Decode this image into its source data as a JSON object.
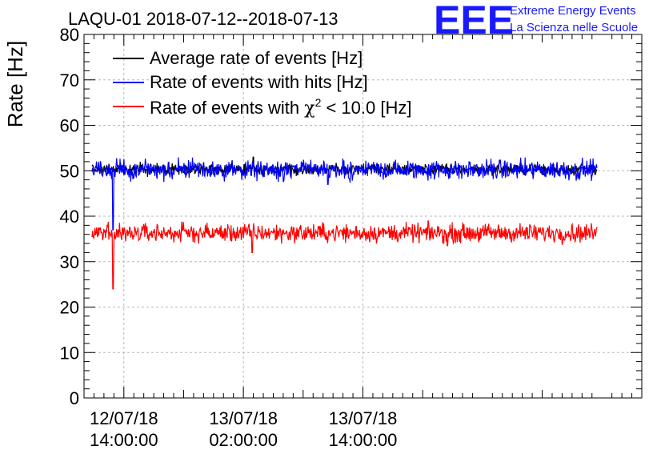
{
  "chart_data": {
    "type": "line",
    "title": "LAQU-01 2018-07-12--2018-07-13",
    "ylabel": "Rate [Hz]",
    "xlabel": "",
    "ylim": [
      0,
      80
    ],
    "y_ticks": [
      0,
      10,
      20,
      30,
      40,
      50,
      60,
      70,
      80
    ],
    "x_range_hours": [
      -4,
      52
    ],
    "x_ticks": [
      {
        "hours": 0,
        "date": "12/07/18",
        "time": "14:00:00"
      },
      {
        "hours": 12,
        "date": "13/07/18",
        "time": "02:00:00"
      },
      {
        "hours": 24,
        "date": "13/07/18",
        "time": "14:00:00"
      }
    ],
    "grid": true,
    "legend_position": "top-left",
    "series": [
      {
        "name": "Average rate of events [Hz]",
        "color": "#000000",
        "start_hours": -3.2,
        "end_hours": 47.5,
        "mean": 50.3,
        "noise": 0.6,
        "anomalies": [
          {
            "hours": 13.0,
            "value": 53.0
          }
        ]
      },
      {
        "name": "Rate of events with hits [Hz]",
        "color": "#0000ff",
        "start_hours": -3.2,
        "end_hours": 47.5,
        "mean": 50.2,
        "noise": 1.1,
        "anomalies": [
          {
            "hours": -1.1,
            "value": 37.0
          },
          {
            "hours": 20.5,
            "value": 47.0
          }
        ]
      },
      {
        "name": "Rate of events with χ² < 10.0 [Hz]",
        "color": "#ff0000",
        "start_hours": -3.2,
        "end_hours": 47.5,
        "mean": 36.3,
        "noise": 1.0,
        "anomalies": [
          {
            "hours": -1.1,
            "value": 24.0
          },
          {
            "hours": 12.9,
            "value": 32.0
          },
          {
            "hours": 32.5,
            "value": 33.5
          }
        ]
      }
    ],
    "legend_labels": {
      "average": "Average rate of events [Hz]",
      "hits": "Rate of events with hits [Hz]",
      "chi2_prefix": "Rate of events with ",
      "chi2_symbol": "χ",
      "chi2_exp": "2",
      "chi2_suffix": " < 10.0 [Hz]"
    }
  },
  "logo": {
    "letters": "EEE",
    "line1": "Extreme Energy Events",
    "line2": "La Scienza nelle Scuole"
  }
}
